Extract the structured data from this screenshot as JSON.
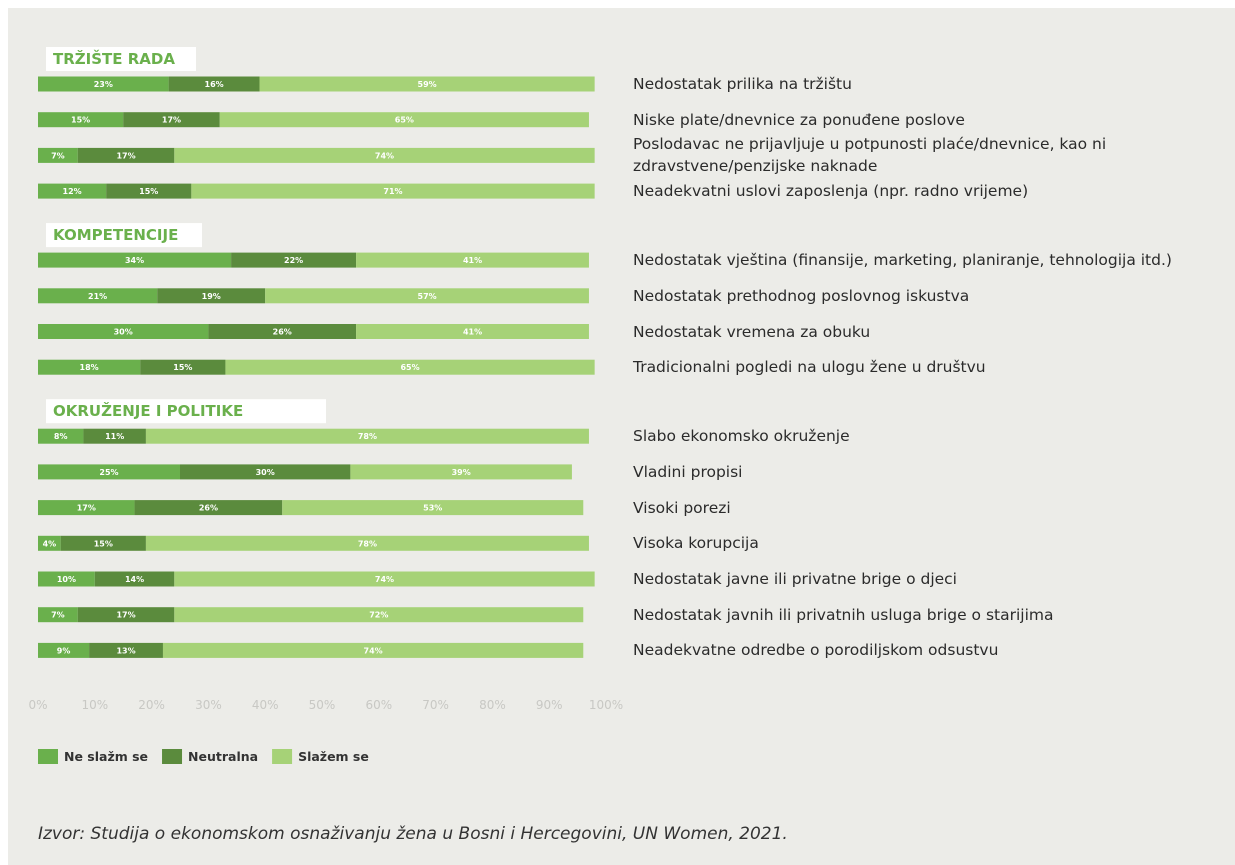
{
  "chart_data": {
    "type": "stacked-bar",
    "orientation": "horizontal",
    "groups": [
      {
        "name": "TRŽIŠTE RADA",
        "categories": [
          "Nedostatak prilika na tržištu",
          "Niske plate/dnevnice za ponuđene poslove",
          "Poslodavac ne prijavljuje u potpunosti plaće/dnevnice, kao ni\nzdravstvene/penzijske naknade",
          "Neadekvatni uslovi zaposlenja (npr. radno vrijeme)"
        ]
      },
      {
        "name": "KOMPETENCIJE",
        "categories": [
          "Nedostatak vještina (finansije, marketing, planiranje, tehnologija itd.)",
          "Nedostatak prethodnog poslovnog iskustva",
          "Nedostatak vremena za obuku",
          "Tradicionalni pogledi na ulogu žene u društvu"
        ]
      },
      {
        "name": "OKRUŽENJE I POLITIKE",
        "categories": [
          "Slabo ekonomsko okruženje",
          "Vladini propisi",
          "Visoki porezi",
          "Visoka korupcija",
          "Nedostatak javne ili privatne brige o djeci",
          "Nedostatak javnih ili privatnih usluga brige o starijima",
          "Neadekvatne odredbe o porodiljskom odsustvu"
        ]
      }
    ],
    "series": [
      {
        "name": "Ne slažm se",
        "color": "#6ab04c",
        "values": [
          23,
          15,
          7,
          12,
          34,
          21,
          30,
          18,
          8,
          25,
          17,
          4,
          10,
          7,
          9
        ],
        "value_labels": [
          "23%",
          "15%",
          "7%",
          "12%",
          "34%",
          "21%",
          "30%",
          "18%",
          "8%",
          "25%",
          "17%",
          "4%",
          "10%",
          "7%",
          "9%"
        ]
      },
      {
        "name": "Neutralna",
        "color": "#5b8b3d",
        "values": [
          16,
          17,
          17,
          15,
          22,
          19,
          26,
          15,
          11,
          30,
          26,
          15,
          14,
          17,
          13
        ],
        "value_labels": [
          "16%",
          "17%",
          "17%",
          "15%",
          "22%",
          "19%",
          "26%",
          "15%",
          "11%",
          "30%",
          "26%",
          "15%",
          "14%",
          "17%",
          "13%"
        ]
      },
      {
        "name": "Slažem se",
        "color": "#a6d277",
        "values": [
          59,
          65,
          74,
          71,
          41,
          57,
          41,
          65,
          78,
          39,
          53,
          78,
          74,
          72,
          74
        ],
        "value_labels": [
          "59%",
          "65%",
          "74%",
          "71%",
          "41%",
          "57%",
          "41%",
          "65%",
          "78%",
          "39%",
          "53%",
          "78%",
          "74%",
          "72%",
          "74%"
        ]
      }
    ],
    "xlim": [
      0,
      100
    ],
    "xticks": [
      {
        "value": 0,
        "label": "0%"
      },
      {
        "value": 10,
        "label": "10%"
      },
      {
        "value": 20,
        "label": "20%"
      },
      {
        "value": 30,
        "label": "30%"
      },
      {
        "value": 40,
        "label": "40%"
      },
      {
        "value": 50,
        "label": "50%"
      },
      {
        "value": 60,
        "label": "60%"
      },
      {
        "value": 70,
        "label": "70%"
      },
      {
        "value": 80,
        "label": "80%"
      },
      {
        "value": 90,
        "label": "90%"
      },
      {
        "value": 100,
        "label": "100%"
      }
    ],
    "source": "Izvor: Studija o ekonomskom osnaživanju žena u Bosni i Hercegovini, UN Women, 2021."
  }
}
